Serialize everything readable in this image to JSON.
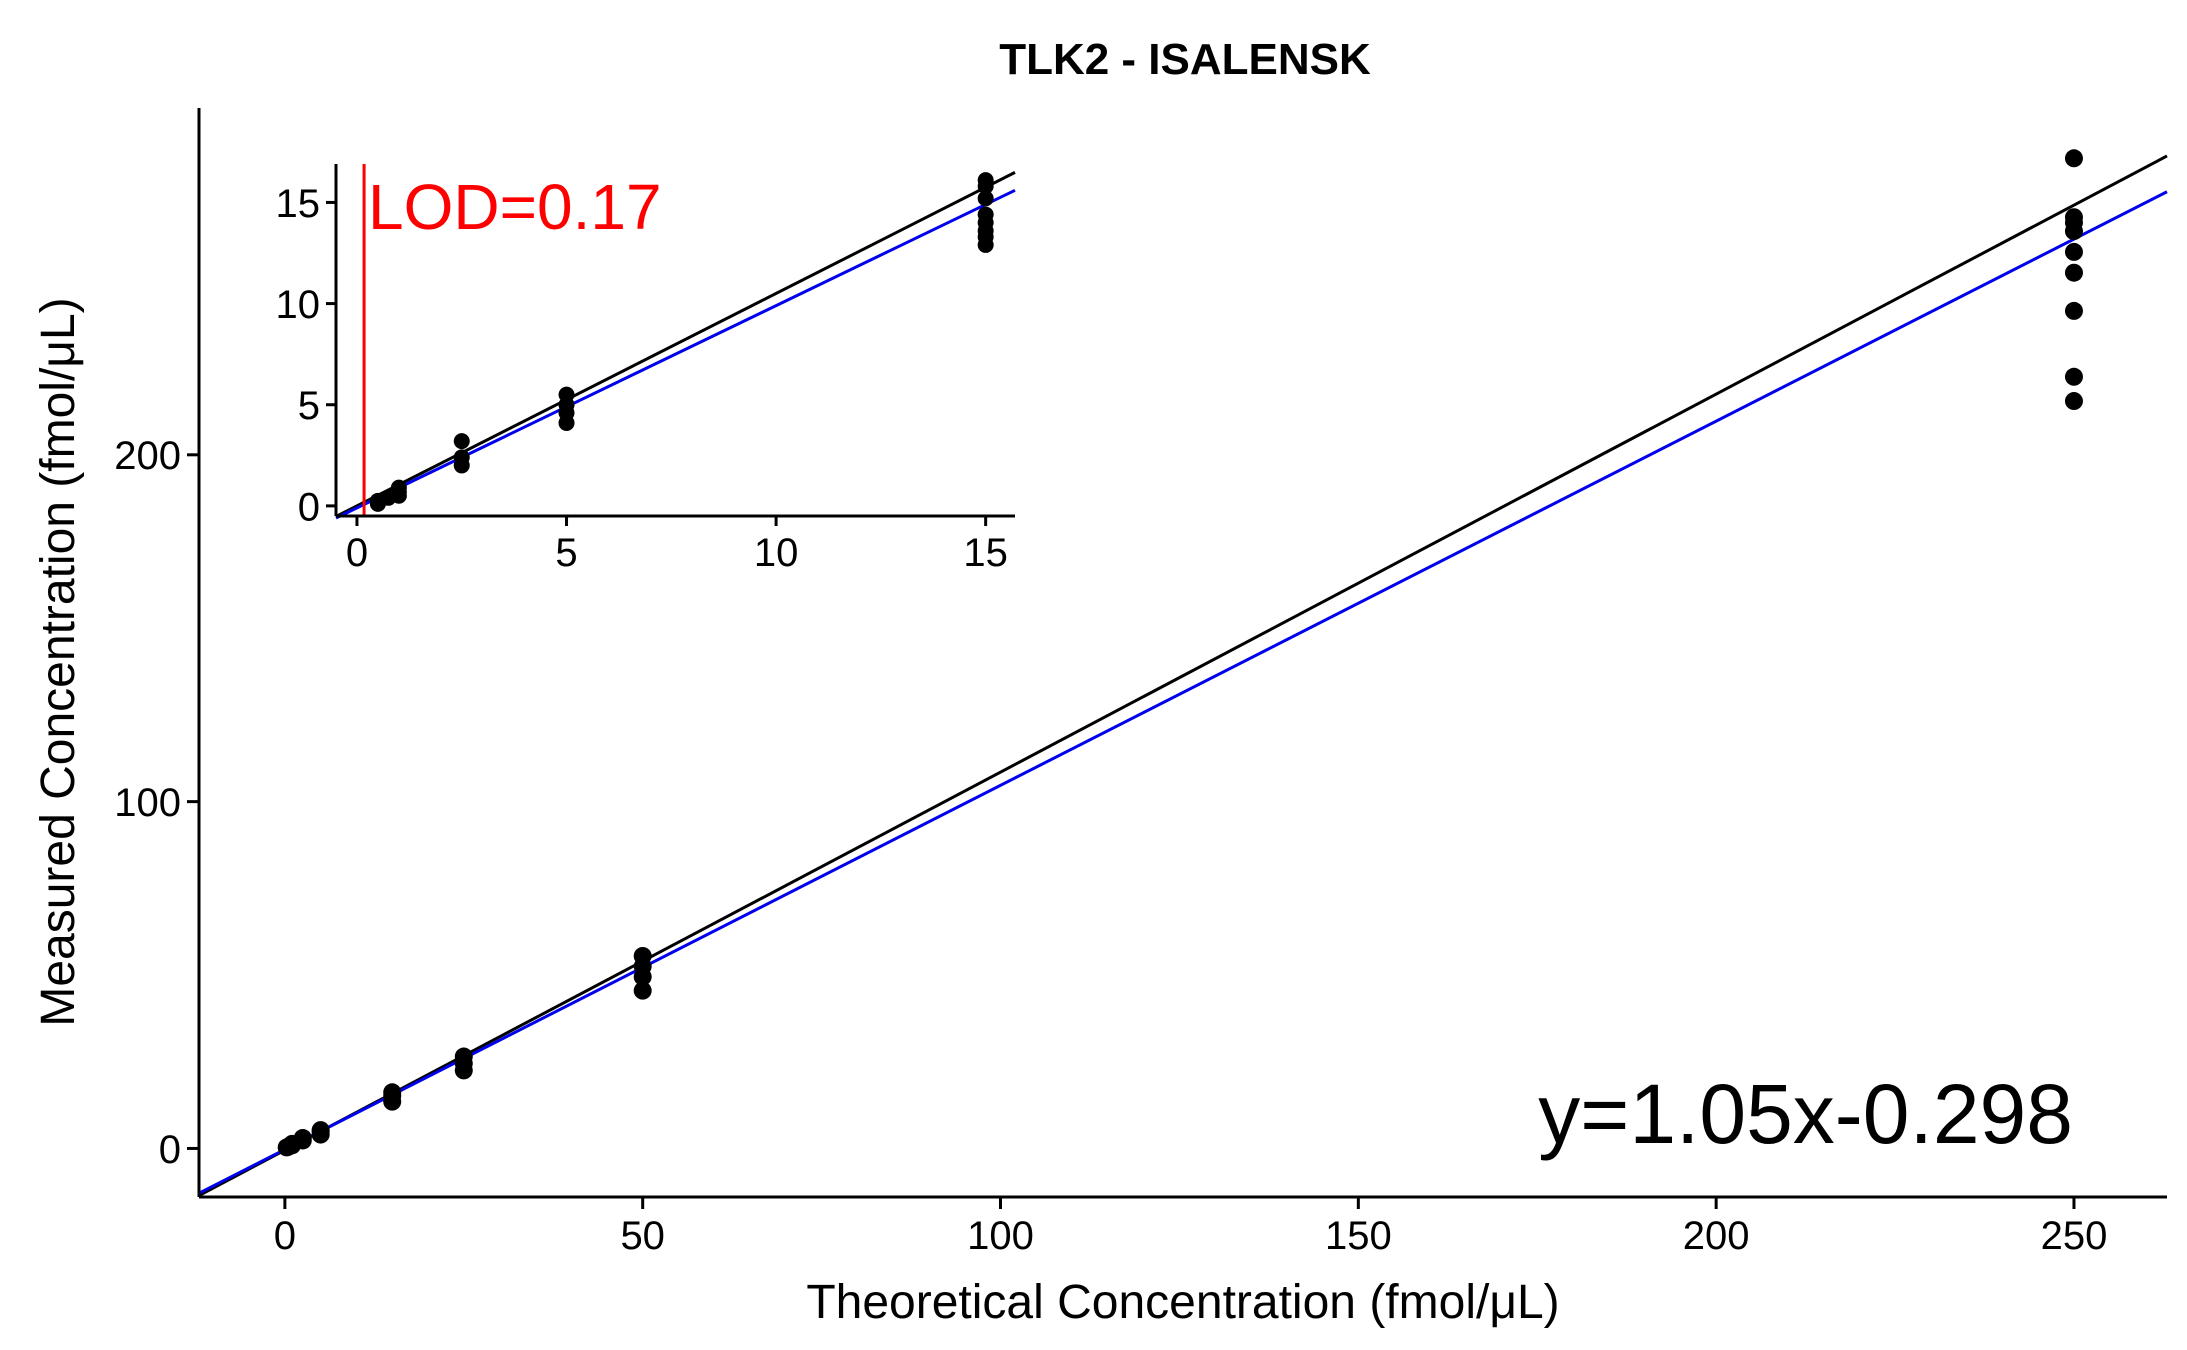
{
  "chart_data": [
    {
      "name": "main",
      "type": "scatter",
      "title": "TLK2 - ISALENSK",
      "xlabel": "Theoretical Concentration (fmol/μL)",
      "ylabel": "Measured Concentration (fmol/μL)",
      "xlim": [
        -12,
        263
      ],
      "ylim": [
        -14,
        300
      ],
      "xticks": [
        0,
        50,
        100,
        150,
        200,
        250
      ],
      "yticks": [
        0,
        100,
        200
      ],
      "grid": false,
      "points": [
        {
          "x": 0.25,
          "y": 0.3
        },
        {
          "x": 0.5,
          "y": 0.5
        },
        {
          "x": 0.75,
          "y": 0.8
        },
        {
          "x": 1,
          "y": 0.9
        },
        {
          "x": 1,
          "y": 1.3
        },
        {
          "x": 2.5,
          "y": 2.3
        },
        {
          "x": 2.5,
          "y": 3.0
        },
        {
          "x": 5,
          "y": 4.0
        },
        {
          "x": 5,
          "y": 4.8
        },
        {
          "x": 5,
          "y": 5.3
        },
        {
          "x": 15,
          "y": 13.5
        },
        {
          "x": 15,
          "y": 15.2
        },
        {
          "x": 15,
          "y": 16.2
        },
        {
          "x": 25,
          "y": 22.5
        },
        {
          "x": 25,
          "y": 24.5
        },
        {
          "x": 25,
          "y": 26.5
        },
        {
          "x": 50,
          "y": 45.5
        },
        {
          "x": 50,
          "y": 49.5
        },
        {
          "x": 50,
          "y": 52.5
        },
        {
          "x": 50,
          "y": 55.5
        },
        {
          "x": 250,
          "y": 215.5
        },
        {
          "x": 250,
          "y": 222.5
        },
        {
          "x": 250,
          "y": 241.5
        },
        {
          "x": 250,
          "y": 252.5
        },
        {
          "x": 250,
          "y": 258.5
        },
        {
          "x": 250,
          "y": 264.5
        },
        {
          "x": 250,
          "y": 267.0
        },
        {
          "x": 250,
          "y": 268.5
        },
        {
          "x": 250,
          "y": 285.5
        }
      ],
      "lines": [
        {
          "kind": "identity",
          "slope": 1.09,
          "intercept": -0.5,
          "color": "#000000"
        },
        {
          "kind": "fit",
          "slope": 1.05,
          "intercept": -0.298,
          "color": "#0000ee"
        }
      ],
      "annotation": "y=1.05x-0.298"
    },
    {
      "name": "inset",
      "type": "scatter",
      "xlim": [
        -0.5,
        15.7
      ],
      "ylim": [
        -0.5,
        16.9
      ],
      "xticks": [
        0,
        5,
        10,
        15
      ],
      "yticks": [
        0,
        5,
        10,
        15
      ],
      "grid": false,
      "lod": {
        "x": 0.17,
        "label": "LOD=0.17",
        "color": "#ff0000"
      },
      "points": [
        {
          "x": 0.5,
          "y": 0.1
        },
        {
          "x": 0.5,
          "y": 0.25
        },
        {
          "x": 0.75,
          "y": 0.4
        },
        {
          "x": 1,
          "y": 0.5
        },
        {
          "x": 1,
          "y": 0.7
        },
        {
          "x": 1,
          "y": 0.9
        },
        {
          "x": 2.5,
          "y": 2.0
        },
        {
          "x": 2.5,
          "y": 2.4
        },
        {
          "x": 2.5,
          "y": 3.2
        },
        {
          "x": 5,
          "y": 4.1
        },
        {
          "x": 5,
          "y": 4.6
        },
        {
          "x": 5,
          "y": 5.0
        },
        {
          "x": 5,
          "y": 5.5
        },
        {
          "x": 15,
          "y": 12.9
        },
        {
          "x": 15,
          "y": 13.3
        },
        {
          "x": 15,
          "y": 13.6
        },
        {
          "x": 15,
          "y": 14.0
        },
        {
          "x": 15,
          "y": 14.4
        },
        {
          "x": 15,
          "y": 15.2
        },
        {
          "x": 15,
          "y": 15.8
        },
        {
          "x": 15,
          "y": 16.1
        }
      ],
      "lines": [
        {
          "kind": "identity",
          "slope": 1.05,
          "intercept": 0.0,
          "color": "#000000"
        },
        {
          "kind": "fit",
          "slope": 1.0,
          "intercept": -0.1,
          "color": "#0000ee"
        }
      ]
    }
  ]
}
